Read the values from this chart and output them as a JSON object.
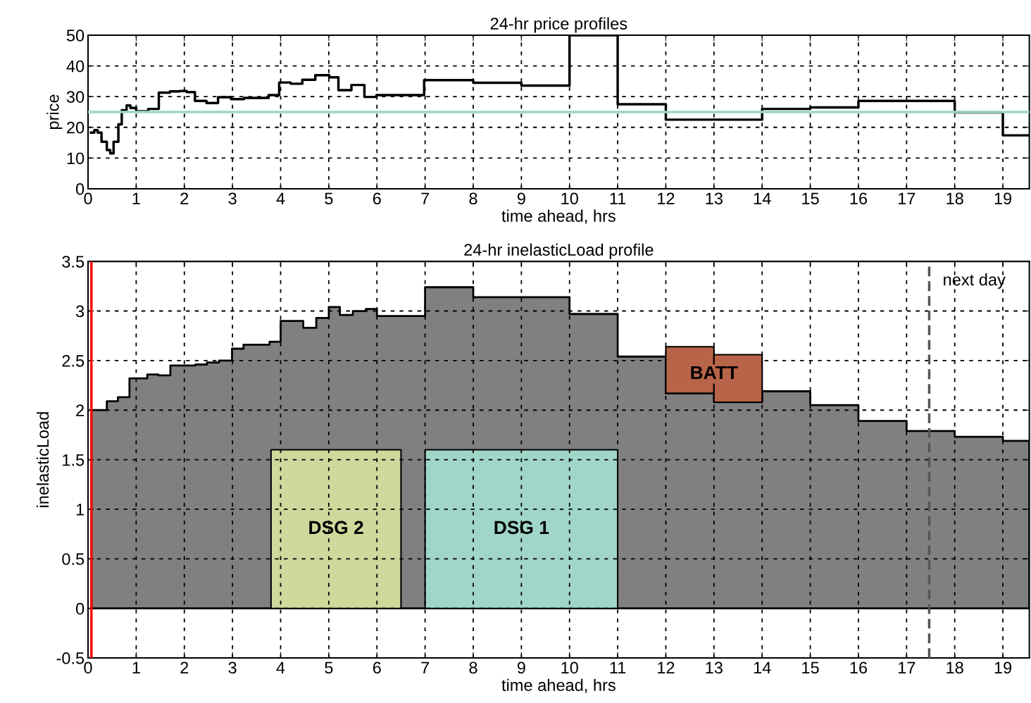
{
  "chart_data": [
    {
      "type": "step",
      "title": "24-hr price profiles",
      "xlabel": "time ahead, hrs",
      "ylabel": "price",
      "xlim": [
        0,
        19.55
      ],
      "xticks": [
        0,
        1,
        2,
        3,
        4,
        5,
        6,
        7,
        8,
        9,
        10,
        11,
        12,
        13,
        14,
        15,
        16,
        17,
        18,
        19
      ],
      "ylim": [
        0,
        50
      ],
      "yticks": [
        0,
        10,
        20,
        30,
        40,
        50
      ],
      "grid": true,
      "legend": false,
      "marker": "none",
      "line_style": "solid",
      "series": [
        {
          "color": "#000000",
          "x": [
            0.06,
            0.13,
            0.2,
            0.28,
            0.39,
            0.46,
            0.53,
            0.63,
            0.7,
            0.8,
            0.88,
            1.0,
            1.25,
            1.47,
            1.7,
            1.9,
            2.05,
            2.22,
            2.46,
            2.7,
            2.97,
            3.24,
            3.75,
            3.97,
            4.21,
            4.45,
            4.72,
            5.01,
            5.2,
            5.47,
            5.74,
            5.99,
            6.98,
            8,
            9,
            10,
            11,
            12,
            14,
            15,
            16,
            18,
            19,
            19.55
          ],
          "values": [
            18.3,
            19.1,
            18.3,
            15.3,
            12.6,
            11.5,
            15.3,
            21,
            25.6,
            27.1,
            26.3,
            25.2,
            26,
            31.3,
            31.7,
            31.8,
            31.5,
            28.6,
            27.9,
            29.8,
            29.2,
            29.6,
            30.5,
            34.6,
            34.2,
            35.5,
            37,
            36.3,
            32.1,
            33.8,
            29.9,
            30.5,
            35.4,
            34.5,
            33.6,
            50,
            27.5,
            22.5,
            26,
            26.5,
            28.6,
            24.9,
            17.4,
            17.4
          ]
        }
      ],
      "ref_lines": [
        {
          "axis": "y",
          "value": 25,
          "color": "#9fd6c8",
          "line_style": "solid"
        }
      ]
    },
    {
      "type": "area",
      "title": "24-hr inelasticLoad profile",
      "xlabel": "time ahead, hrs",
      "ylabel": "inelasticLoad",
      "xlim": [
        0,
        19.55
      ],
      "xticks": [
        0,
        1,
        2,
        3,
        4,
        5,
        6,
        7,
        8,
        9,
        10,
        11,
        12,
        13,
        14,
        15,
        16,
        17,
        18,
        19
      ],
      "ylim": [
        -0.5,
        3.5
      ],
      "yticks": [
        {
          "value": -0.5,
          "label": "-0.5"
        },
        0,
        0.5,
        1,
        1.5,
        2,
        2.5,
        3,
        3.5
      ],
      "grid": true,
      "legend": false,
      "series": [
        {
          "color": "#808080",
          "x": [
            0.07,
            0.39,
            0.62,
            0.86,
            1.23,
            1.46,
            1.71,
            2.23,
            2.47,
            2.72,
            2.99,
            3.23,
            3.77,
            4.0,
            4.47,
            4.74,
            5.0,
            5.23,
            5.5,
            5.77,
            6.0,
            7.0,
            8.0,
            10,
            11,
            12,
            13,
            14,
            15,
            16,
            17,
            18,
            19,
            19.55
          ],
          "values": [
            2.0,
            2.09,
            2.13,
            2.32,
            2.36,
            2.35,
            2.45,
            2.46,
            2.48,
            2.5,
            2.62,
            2.66,
            2.69,
            2.9,
            2.83,
            2.93,
            3.04,
            2.96,
            3.0,
            3.02,
            2.95,
            3.24,
            3.14,
            2.97,
            2.54,
            2.17,
            2.08,
            2.19,
            2.05,
            1.89,
            1.79,
            1.73,
            1.69,
            1.69
          ]
        },
        {
          "name": "DSG 2",
          "color": "#d0d89c",
          "x": [
            3.8,
            6.5
          ],
          "values": [
            1.6,
            1.6
          ]
        },
        {
          "name": "DSG 1",
          "color": "#9fd6c8",
          "x": [
            7,
            11
          ],
          "values": [
            1.6,
            1.6
          ]
        },
        {
          "name": "BATT",
          "type": "bar",
          "color": "#b86448",
          "x": [
            12.5,
            13.5
          ],
          "values": [
            0.47,
            0.48
          ],
          "base": [
            2.17,
            2.08
          ]
        }
      ],
      "ref_lines": [
        {
          "axis": "x",
          "value": 0.07,
          "color": "#ff0000",
          "line_style": "solid"
        },
        {
          "axis": "x",
          "value": 17.47,
          "label": "next day",
          "color": "#555555",
          "line_style": "dashed"
        }
      ]
    }
  ]
}
